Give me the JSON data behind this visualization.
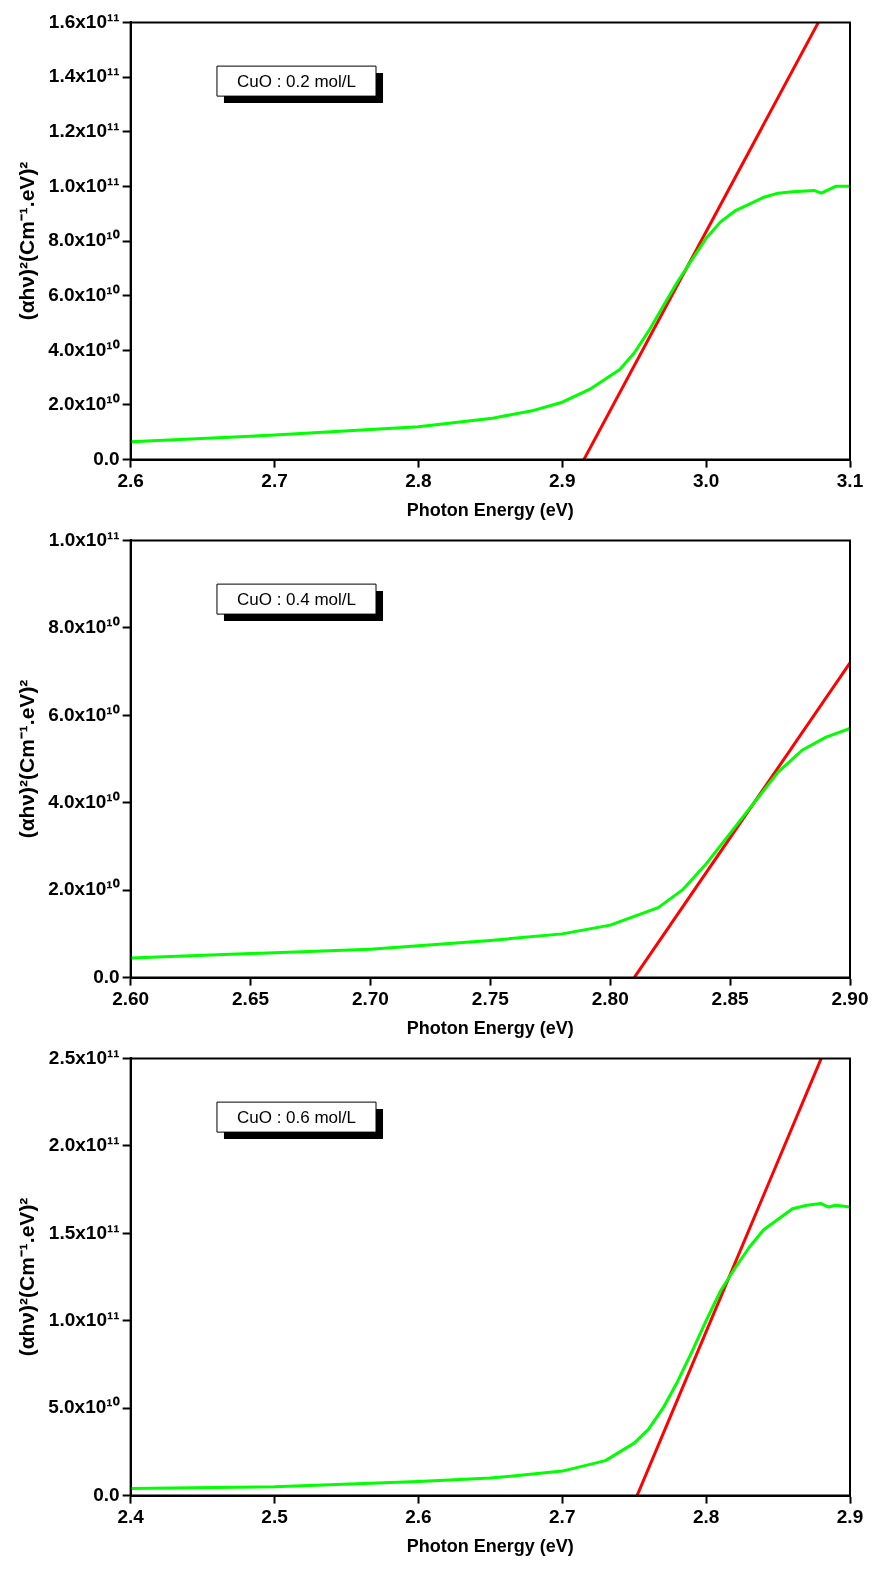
{
  "chart_data": [
    {
      "type": "line",
      "xlabel": "Photon Energy (eV)",
      "ylabel": "(αhν)²(Cm⁻¹.eV)²",
      "annotations": [
        "CuO : 0.2 mol/L"
      ],
      "marker": "none",
      "grid": false,
      "legend": false,
      "xlim": [
        2.6,
        3.1
      ],
      "xticks": [
        {
          "value": 2.6,
          "label": "2.6"
        },
        {
          "value": 2.7,
          "label": "2.7"
        },
        {
          "value": 2.8,
          "label": "2.8"
        },
        {
          "value": 2.9,
          "label": "2.9"
        },
        {
          "value": 3.0,
          "label": "3.0"
        },
        {
          "value": 3.1,
          "label": "3.1"
        }
      ],
      "ylim": [
        0,
        160000000000.0
      ],
      "yticks": [
        {
          "value": 0,
          "label": "0.0"
        },
        {
          "value": 20000000000.0,
          "label": "2.0x10¹⁰"
        },
        {
          "value": 40000000000.0,
          "label": "4.0x10¹⁰"
        },
        {
          "value": 60000000000.0,
          "label": "6.0x10¹⁰"
        },
        {
          "value": 80000000000.0,
          "label": "8.0x10¹⁰"
        },
        {
          "value": 100000000000.0,
          "label": "1.0x10¹¹"
        },
        {
          "value": 120000000000.0,
          "label": "1.2x10¹¹"
        },
        {
          "value": 140000000000.0,
          "label": "1.4x10¹¹"
        },
        {
          "value": 160000000000.0,
          "label": "1.6x10¹¹"
        }
      ],
      "series": [
        {
          "color": "#00ff00",
          "x": [
            2.6,
            2.7,
            2.8,
            2.85,
            2.88,
            2.9,
            2.92,
            2.94,
            2.95,
            2.96,
            2.97,
            2.98,
            2.99,
            3.0,
            3.01,
            3.02,
            3.03,
            3.04,
            3.05,
            3.06,
            3.075,
            3.08,
            3.09,
            3.1
          ],
          "values": [
            6500000000.0,
            9000000000.0,
            12000000000.0,
            15000000000.0,
            18000000000.0,
            21000000000.0,
            26000000000.0,
            33000000000.0,
            39000000000.0,
            47000000000.0,
            56000000000.0,
            65000000000.0,
            73000000000.0,
            81000000000.0,
            87000000000.0,
            91000000000.0,
            93500000000.0,
            96000000000.0,
            97500000000.0,
            98000000000.0,
            98500000000.0,
            97500000000.0,
            100000000000.0,
            100000000000.0
          ]
        },
        {
          "color": "#ff0000",
          "x": [
            2.915,
            3.078
          ],
          "values": [
            0,
            160000000000.0
          ]
        }
      ]
    },
    {
      "type": "line",
      "xlabel": "Photon Energy (eV)",
      "ylabel": "(αhν)²(Cm⁻¹.eV)²",
      "annotations": [
        "CuO : 0.4 mol/L"
      ],
      "marker": "none",
      "grid": false,
      "legend": false,
      "xlim": [
        2.6,
        2.9
      ],
      "xticks": [
        {
          "value": 2.6,
          "label": "2.60"
        },
        {
          "value": 2.65,
          "label": "2.65"
        },
        {
          "value": 2.7,
          "label": "2.70"
        },
        {
          "value": 2.75,
          "label": "2.75"
        },
        {
          "value": 2.8,
          "label": "2.80"
        },
        {
          "value": 2.85,
          "label": "2.85"
        },
        {
          "value": 2.9,
          "label": "2.90"
        }
      ],
      "ylim": [
        0,
        100000000000.0
      ],
      "yticks": [
        {
          "value": 0,
          "label": "0.0"
        },
        {
          "value": 20000000000.0,
          "label": "2.0x10¹⁰"
        },
        {
          "value": 40000000000.0,
          "label": "4.0x10¹⁰"
        },
        {
          "value": 60000000000.0,
          "label": "6.0x10¹⁰"
        },
        {
          "value": 80000000000.0,
          "label": "8.0x10¹⁰"
        },
        {
          "value": 100000000000.0,
          "label": "1.0x10¹¹"
        }
      ],
      "series": [
        {
          "color": "#00ff00",
          "x": [
            2.6,
            2.65,
            2.7,
            2.75,
            2.78,
            2.8,
            2.82,
            2.83,
            2.84,
            2.85,
            2.86,
            2.87,
            2.88,
            2.89,
            2.9
          ],
          "values": [
            4500000000.0,
            5500000000.0,
            6500000000.0,
            8500000000.0,
            10000000000.0,
            12000000000.0,
            16000000000.0,
            20000000000.0,
            26000000000.0,
            33000000000.0,
            40000000000.0,
            47000000000.0,
            52000000000.0,
            55000000000.0,
            57000000000.0
          ]
        },
        {
          "color": "#ff0000",
          "x": [
            2.81,
            2.9
          ],
          "values": [
            0,
            72000000000.0
          ]
        }
      ]
    },
    {
      "type": "line",
      "xlabel": "Photon Energy (eV)",
      "ylabel": "(αhν)²(Cm⁻¹.eV)²",
      "annotations": [
        "CuO : 0.6 mol/L"
      ],
      "marker": "none",
      "grid": false,
      "legend": false,
      "xlim": [
        2.4,
        2.9
      ],
      "xticks": [
        {
          "value": 2.4,
          "label": "2.4"
        },
        {
          "value": 2.5,
          "label": "2.5"
        },
        {
          "value": 2.6,
          "label": "2.6"
        },
        {
          "value": 2.7,
          "label": "2.7"
        },
        {
          "value": 2.8,
          "label": "2.8"
        },
        {
          "value": 2.9,
          "label": "2.9"
        }
      ],
      "ylim": [
        0,
        250000000000.0
      ],
      "yticks": [
        {
          "value": 0,
          "label": "0.0"
        },
        {
          "value": 50000000000.0,
          "label": "5.0x10¹⁰"
        },
        {
          "value": 100000000000.0,
          "label": "1.0x10¹¹"
        },
        {
          "value": 150000000000.0,
          "label": "1.5x10¹¹"
        },
        {
          "value": 200000000000.0,
          "label": "2.0x10¹¹"
        },
        {
          "value": 250000000000.0,
          "label": "2.5x10¹¹"
        }
      ],
      "series": [
        {
          "color": "#00ff00",
          "x": [
            2.4,
            2.5,
            2.6,
            2.65,
            2.7,
            2.73,
            2.75,
            2.76,
            2.77,
            2.78,
            2.79,
            2.8,
            2.81,
            2.82,
            2.83,
            2.84,
            2.85,
            2.86,
            2.87,
            2.88,
            2.885,
            2.89,
            2.9
          ],
          "values": [
            4000000000.0,
            5000000000.0,
            8000000000.0,
            10000000000.0,
            14000000000.0,
            20000000000.0,
            30000000000.0,
            38000000000.0,
            50000000000.0,
            65000000000.0,
            82000000000.0,
            100000000000.0,
            117000000000.0,
            130000000000.0,
            142000000000.0,
            152000000000.0,
            158000000000.0,
            164000000000.0,
            166000000000.0,
            167000000000.0,
            165000000000.0,
            166000000000.0,
            165000000000.0
          ]
        },
        {
          "color": "#ff0000",
          "x": [
            2.752,
            2.88
          ],
          "values": [
            0,
            250000000000.0
          ]
        }
      ]
    }
  ]
}
